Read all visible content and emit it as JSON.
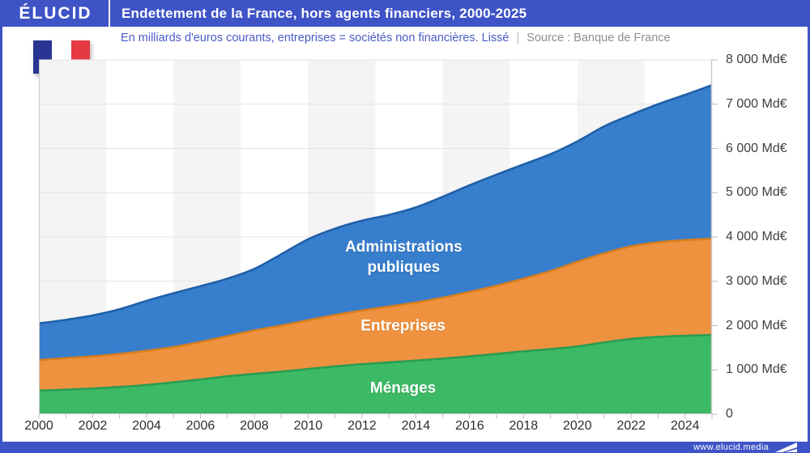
{
  "header": {
    "brand": "ÉLUCID",
    "title": "Endettement de la France, hors agents financiers, 2000-2025"
  },
  "subtitle": {
    "text": "En milliards d'euros courants, entreprises = sociétés non financières. Lissé",
    "separator": "|",
    "source": "Source : Banque de France"
  },
  "flag": {
    "name": "france-flag",
    "colors": [
      "#283593",
      "#ffffff",
      "#e53944"
    ]
  },
  "footer": {
    "website": "www.elucid.media"
  },
  "colors": {
    "brand_blue": "#3e53c6",
    "band_gray": "#f4f4f4",
    "gridline": "#e4e4e4",
    "axis": "#c9c9c9",
    "tick": "#bbbbbb"
  },
  "chart_data": {
    "type": "area",
    "stacked": true,
    "smoothed": true,
    "title": "Endettement de la France, hors agents financiers, 2000-2025",
    "xlabel": "",
    "ylabel": "Md€",
    "xlim": [
      2000,
      2025
    ],
    "ylim": [
      0,
      8000
    ],
    "grid": true,
    "legend_position": "labels-inside-areas",
    "years": [
      2000,
      2001,
      2002,
      2003,
      2004,
      2005,
      2006,
      2007,
      2008,
      2009,
      2010,
      2011,
      2012,
      2013,
      2014,
      2015,
      2016,
      2017,
      2018,
      2019,
      2020,
      2021,
      2022,
      2023,
      2024,
      2025
    ],
    "series": [
      {
        "name": "Ménages",
        "fill": "#3cb964",
        "stroke": "#2a9c52",
        "values": [
          530,
          555,
          580,
          615,
          660,
          720,
          785,
          855,
          910,
          960,
          1020,
          1080,
          1130,
          1170,
          1210,
          1255,
          1305,
          1360,
          1420,
          1470,
          1530,
          1620,
          1700,
          1745,
          1770,
          1790
        ]
      },
      {
        "name": "Entreprises",
        "fill": "#ef9240",
        "stroke": "#d87e1c",
        "values": [
          690,
          710,
          725,
          745,
          770,
          795,
          845,
          905,
          980,
          1040,
          1100,
          1160,
          1210,
          1260,
          1310,
          1375,
          1455,
          1540,
          1640,
          1760,
          1910,
          2010,
          2090,
          2135,
          2160,
          2170
        ]
      },
      {
        "name": "Administrations publiques",
        "fill": "#377ecd",
        "stroke": "#1f5fa8",
        "values": [
          830,
          865,
          925,
          1010,
          1130,
          1215,
          1260,
          1300,
          1390,
          1610,
          1830,
          1950,
          2030,
          2070,
          2150,
          2280,
          2410,
          2510,
          2580,
          2640,
          2720,
          2870,
          2970,
          3120,
          3280,
          3470
        ]
      }
    ],
    "y_ticks": [
      {
        "v": 8000,
        "label": "8 000 Md€"
      },
      {
        "v": 7000,
        "label": "7 000 Md€"
      },
      {
        "v": 6000,
        "label": "6 000 Md€"
      },
      {
        "v": 5000,
        "label": "5 000 Md€"
      },
      {
        "v": 4000,
        "label": "4 000 Md€"
      },
      {
        "v": 3000,
        "label": "3 000 Md€"
      },
      {
        "v": 2000,
        "label": "2 000 Md€"
      },
      {
        "v": 1000,
        "label": "1 000 Md€"
      },
      {
        "v": 0,
        "label": "0"
      }
    ],
    "x_ticks": [
      {
        "v": 2000,
        "label": "2000"
      },
      {
        "v": 2002,
        "label": "2002"
      },
      {
        "v": 2004,
        "label": "2004"
      },
      {
        "v": 2006,
        "label": "2006"
      },
      {
        "v": 2008,
        "label": "2008"
      },
      {
        "v": 2010,
        "label": "2010"
      },
      {
        "v": 2012,
        "label": "2012"
      },
      {
        "v": 2014,
        "label": "2014"
      },
      {
        "v": 2016,
        "label": "2016"
      },
      {
        "v": 2018,
        "label": "2018"
      },
      {
        "v": 2020,
        "label": "2020"
      },
      {
        "v": 2022,
        "label": "2022"
      },
      {
        "v": 2024,
        "label": "2024"
      }
    ],
    "area_labels": [
      {
        "lines": [
          "Administrations",
          "publiques"
        ],
        "fx": 0.542,
        "fy": 0.556
      },
      {
        "lines": [
          "Entreprises"
        ],
        "fx": 0.541,
        "fy": 0.752
      },
      {
        "lines": [
          "Ménages"
        ],
        "fx": 0.541,
        "fy": 0.927
      }
    ]
  }
}
